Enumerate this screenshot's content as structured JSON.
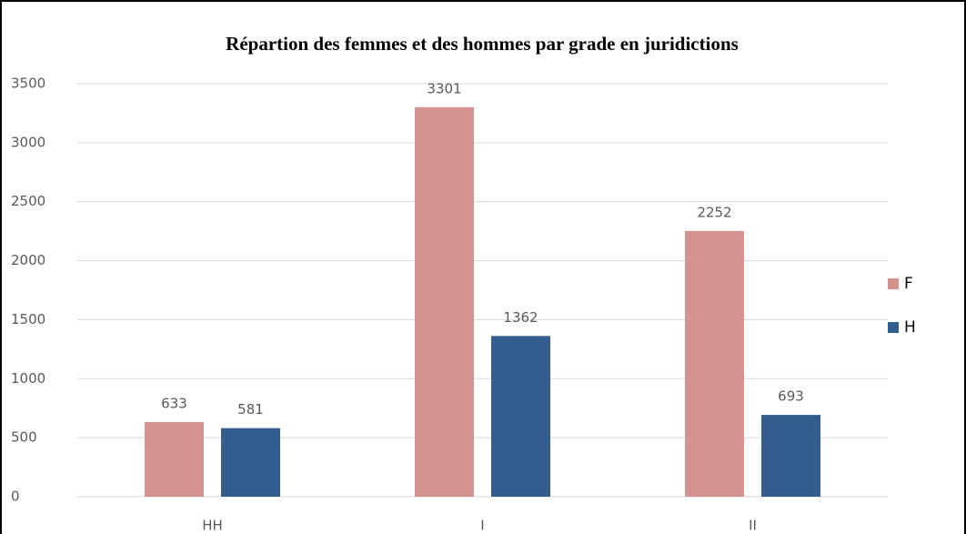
{
  "chart_data": {
    "type": "bar",
    "title": "Répartion des femmes et des hommes par grade en juridictions",
    "categories": [
      "HH",
      "I",
      "II"
    ],
    "series": [
      {
        "name": "F",
        "color": "#d5938f",
        "values": [
          633,
          3301,
          2252
        ]
      },
      {
        "name": "H",
        "color": "#335d8f",
        "values": [
          581,
          1362,
          693
        ]
      }
    ],
    "ylim": [
      0,
      3500
    ],
    "yticks": [
      0,
      500,
      1000,
      1500,
      2000,
      2500,
      3000,
      3500
    ],
    "grid": true,
    "legend": "right"
  }
}
